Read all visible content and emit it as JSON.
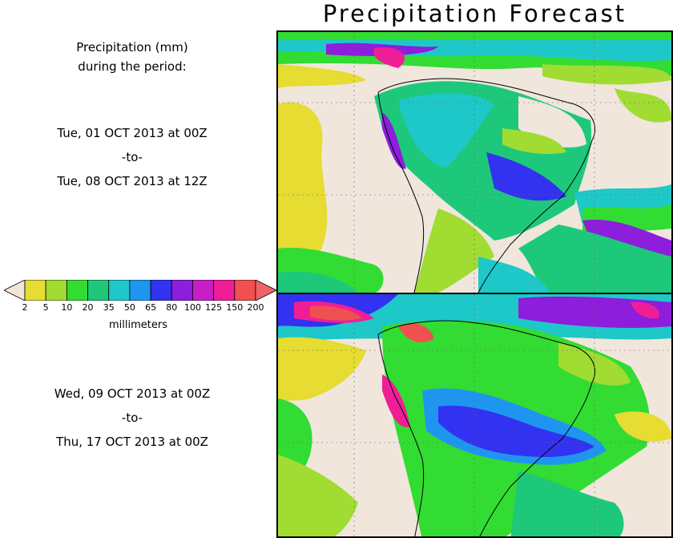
{
  "title": "Precipitation Forecast",
  "period_heading": [
    "Precipitation (mm)",
    "during the period:"
  ],
  "period1": {
    "from": "Tue, 01 OCT 2013 at 00Z",
    "sep": "-to-",
    "to": "Tue, 08 OCT 2013 at 12Z"
  },
  "period2": {
    "from": "Wed, 09 OCT 2013 at 00Z",
    "sep": "-to-",
    "to": "Thu, 17 OCT 2013 at 00Z"
  },
  "legend": {
    "unit": "millimeters",
    "ticks": [
      "2",
      "5",
      "10",
      "20",
      "35",
      "50",
      "65",
      "80",
      "100",
      "125",
      "150",
      "200"
    ],
    "colors": [
      "#f0e6dc",
      "#e6dc32",
      "#a0dc32",
      "#32dc32",
      "#1ec87a",
      "#1ec8c8",
      "#1e96f0",
      "#3232f0",
      "#8c1edc",
      "#c81ec8",
      "#f01e96",
      "#f05050",
      "#f06464"
    ]
  }
}
